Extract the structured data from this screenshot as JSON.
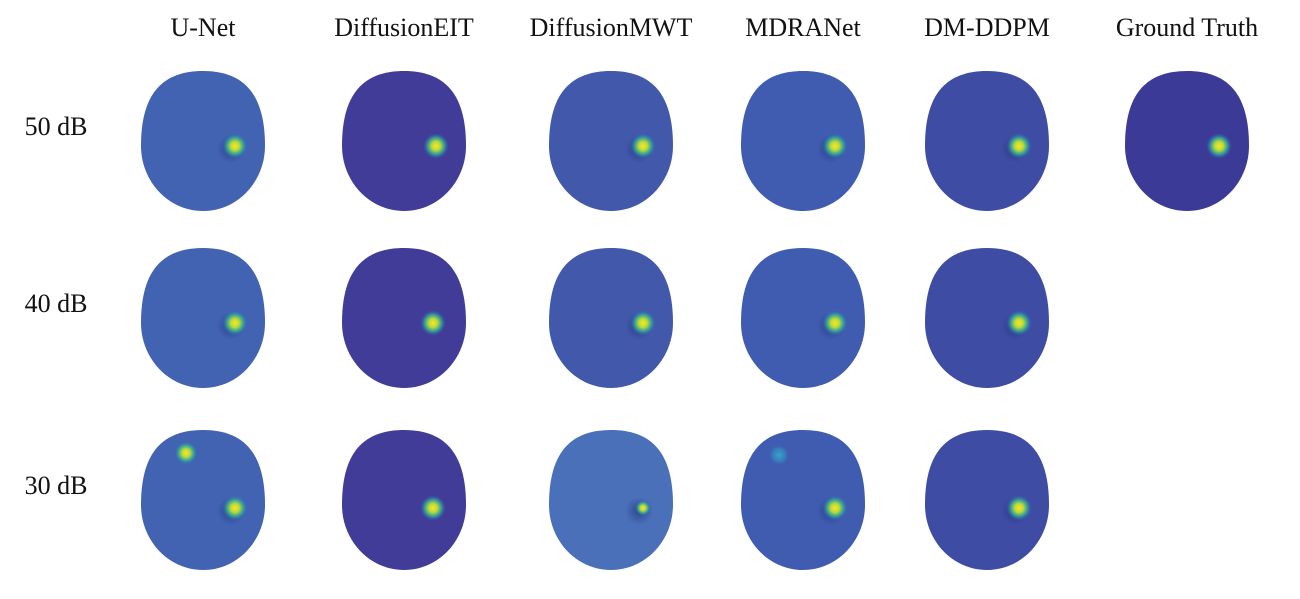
{
  "columns": [
    "U-Net",
    "DiffusionEIT",
    "DiffusionMWT",
    "MDRANet",
    "DM-DDPM",
    "Ground Truth"
  ],
  "rows": [
    "50 dB",
    "40 dB",
    "30 dB"
  ]
}
